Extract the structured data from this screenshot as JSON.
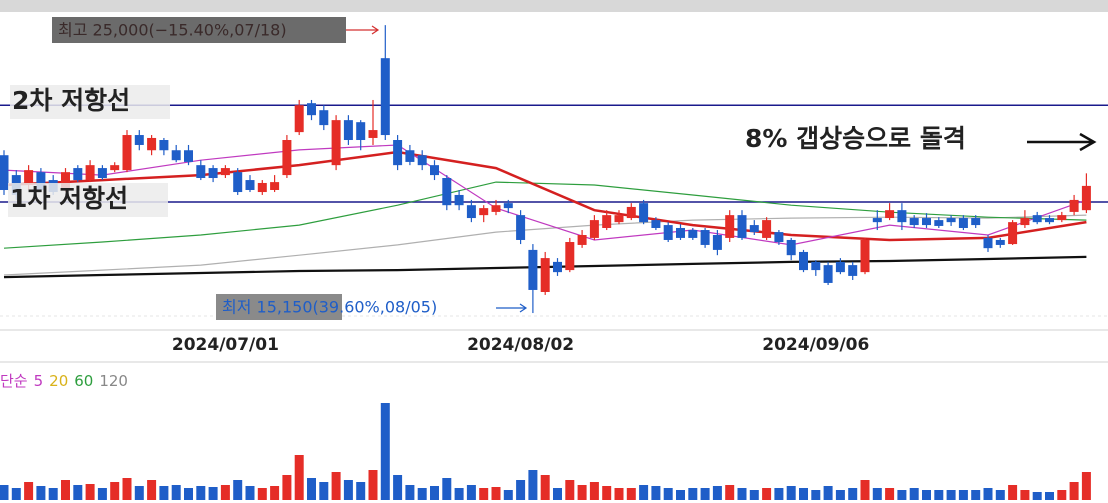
{
  "chart_data": [
    {
      "type": "candlestick",
      "categories": [
        null,
        null,
        null,
        null,
        null,
        null,
        null,
        null,
        null,
        null,
        null,
        null,
        null,
        null,
        null,
        null,
        null,
        null,
        "2024/07/01",
        null,
        null,
        null,
        null,
        null,
        null,
        null,
        null,
        null,
        null,
        null,
        null,
        null,
        null,
        null,
        null,
        null,
        null,
        null,
        null,
        null,
        null,
        null,
        "2024/08/02",
        null,
        null,
        null,
        null,
        null,
        null,
        null,
        null,
        null,
        null,
        null,
        null,
        null,
        null,
        null,
        null,
        null,
        null,
        null,
        null,
        null,
        null,
        null,
        "2024/09/06",
        null,
        null,
        null,
        null,
        null,
        null,
        null,
        null,
        null,
        null,
        null,
        null,
        null,
        null,
        null,
        null,
        null,
        null,
        null,
        null,
        null,
        null
      ],
      "open": [
        20550,
        19870,
        19530,
        19970,
        19700,
        19360,
        20110,
        19700,
        20110,
        20040,
        20040,
        21240,
        20720,
        21070,
        20720,
        20720,
        20210,
        20110,
        19870,
        19970,
        19700,
        19290,
        19360,
        19870,
        21340,
        22330,
        22090,
        20210,
        21750,
        21680,
        21140,
        23870,
        21070,
        20720,
        20550,
        20210,
        19770,
        19190,
        18840,
        18500,
        18610,
        18910,
        18500,
        17310,
        15870,
        16900,
        16620,
        17480,
        17720,
        18060,
        18260,
        18400,
        18910,
        18330,
        18160,
        18060,
        17990,
        17990,
        17820,
        17720,
        18500,
        18160,
        17720,
        17920,
        17650,
        17240,
        16900,
        16790,
        16900,
        16790,
        16550,
        18400,
        18400,
        18670,
        18400,
        18400,
        18330,
        18400,
        18400,
        18400,
        17720,
        17650,
        17510,
        18160,
        18500,
        18400,
        18330,
        18610,
        18670
      ],
      "high": [
        20720,
        20040,
        20210,
        20110,
        19870,
        20110,
        20210,
        20380,
        20210,
        20310,
        21410,
        21410,
        21240,
        21140,
        20900,
        20900,
        20380,
        20210,
        20210,
        20110,
        19870,
        19700,
        19870,
        21240,
        22440,
        22440,
        22260,
        21920,
        21920,
        21750,
        22440,
        25000,
        21240,
        20900,
        20720,
        20380,
        19870,
        19360,
        19020,
        18840,
        19020,
        19020,
        18670,
        17510,
        17240,
        17030,
        17720,
        17990,
        18500,
        18670,
        18670,
        18910,
        19020,
        18430,
        18260,
        18190,
        18060,
        18060,
        17990,
        18670,
        18670,
        18330,
        18430,
        17990,
        17720,
        17310,
        16960,
        16900,
        17030,
        16900,
        17720,
        18670,
        18910,
        18910,
        18500,
        18570,
        18430,
        18500,
        18500,
        18500,
        17820,
        17720,
        18330,
        18670,
        18610,
        18500,
        18610,
        19190,
        19930
      ],
      "low": [
        19190,
        19020,
        19360,
        19290,
        19190,
        19290,
        19630,
        19630,
        19700,
        19970,
        19970,
        20720,
        20550,
        20550,
        20310,
        20210,
        19700,
        19630,
        19770,
        19190,
        19290,
        19190,
        19290,
        19770,
        21240,
        21750,
        21410,
        20040,
        20900,
        20720,
        20900,
        21070,
        20040,
        20210,
        20040,
        19700,
        18670,
        18670,
        18260,
        18260,
        18500,
        18570,
        17510,
        15150,
        15770,
        16420,
        16550,
        17380,
        17650,
        17990,
        18190,
        18330,
        18190,
        17990,
        17580,
        17650,
        17650,
        17380,
        17130,
        17580,
        17650,
        17820,
        17650,
        17480,
        16960,
        16550,
        16420,
        16110,
        16480,
        16280,
        16480,
        17990,
        18330,
        17990,
        18060,
        18060,
        18060,
        18130,
        17990,
        18060,
        17240,
        17380,
        17480,
        18060,
        18190,
        18190,
        18260,
        18500,
        18570
      ],
      "close": [
        19360,
        19190,
        20040,
        19360,
        19290,
        19970,
        19700,
        20210,
        19770,
        20210,
        21240,
        20900,
        21140,
        20720,
        20380,
        20320,
        19770,
        19770,
        20110,
        19290,
        19360,
        19600,
        19630,
        21070,
        22260,
        21920,
        21580,
        21750,
        21070,
        21070,
        21410,
        21240,
        20210,
        20320,
        20210,
        19870,
        18840,
        18840,
        18400,
        18740,
        18840,
        18740,
        17650,
        15940,
        17030,
        16550,
        17580,
        17820,
        18330,
        18500,
        18500,
        18780,
        18260,
        18060,
        17650,
        17720,
        17720,
        17480,
        17310,
        18500,
        17720,
        17920,
        18330,
        17580,
        17130,
        16620,
        16620,
        16180,
        16550,
        16420,
        17650,
        18260,
        18670,
        18260,
        18160,
        18160,
        18130,
        18260,
        18060,
        18160,
        17370,
        17480,
        18260,
        18400,
        18260,
        18260,
        18500,
        19020,
        19500
      ],
      "colors": {
        "up": "#e52d27",
        "down": "#1f5ec8"
      },
      "ylim": [
        14570,
        25860
      ],
      "lines": [
        {
          "color": "#b0b0b0",
          "width": 1.2,
          "x": [
            0,
            8,
            16,
            24,
            32,
            40,
            48,
            56,
            64,
            72,
            80,
            88
          ],
          "values": [
            16450,
            16620,
            16790,
            17130,
            17480,
            17920,
            18160,
            18330,
            18400,
            18430,
            18400,
            18500
          ]
        },
        {
          "color": "#2e9e3e",
          "width": 1.2,
          "x": [
            0,
            8,
            16,
            24,
            32,
            40,
            48,
            56,
            64,
            72,
            80,
            88
          ],
          "values": [
            17370,
            17580,
            17820,
            18160,
            18840,
            19630,
            19530,
            19190,
            18840,
            18600,
            18430,
            18330
          ]
        },
        {
          "color": "#111111",
          "width": 2.2,
          "x": [
            0,
            8,
            16,
            24,
            32,
            40,
            48,
            56,
            64,
            72,
            80,
            88
          ],
          "values": [
            16380,
            16450,
            16520,
            16590,
            16620,
            16690,
            16760,
            16830,
            16900,
            16930,
            17000,
            17070
          ]
        },
        {
          "color": "#d42020",
          "width": 2.5,
          "x": [
            0,
            8,
            16,
            24,
            32,
            40,
            48,
            56,
            64,
            72,
            80,
            88
          ],
          "values": [
            19530,
            19700,
            19870,
            20210,
            20660,
            20110,
            18670,
            18160,
            17820,
            17650,
            17720,
            18260
          ]
        },
        {
          "color": "#c03ac0",
          "width": 1.2,
          "x": [
            0,
            8,
            16,
            24,
            32,
            40,
            48,
            56,
            64,
            72,
            80,
            88
          ],
          "values": [
            20040,
            19870,
            20380,
            20730,
            20900,
            18740,
            17650,
            17990,
            17480,
            18160,
            17820,
            19020
          ]
        }
      ],
      "hlines": [
        {
          "label": "2차 저항선",
          "value": 22260,
          "color": "#1a1a8c"
        },
        {
          "label": "1차 저항선",
          "value": 18950,
          "color": "#1a1a8c"
        }
      ],
      "annotations": [
        "최고 25,000(−15.40%,07/18)",
        "최저 15,150(39.60%,08/05)",
        "8% 갭상승으로 돌격"
      ]
    },
    {
      "type": "bar",
      "values": [
        15,
        12,
        18,
        14,
        12,
        20,
        15,
        16,
        12,
        18,
        22,
        14,
        20,
        14,
        15,
        12,
        14,
        13,
        15,
        20,
        14,
        12,
        14,
        25,
        45,
        22,
        18,
        28,
        20,
        18,
        30,
        97,
        25,
        15,
        12,
        14,
        22,
        12,
        15,
        12,
        13,
        10,
        20,
        30,
        25,
        12,
        20,
        15,
        18,
        14,
        12,
        12,
        15,
        14,
        12,
        10,
        12,
        12,
        14,
        15,
        12,
        10,
        12,
        12,
        14,
        12,
        10,
        14,
        10,
        12,
        20,
        12,
        12,
        10,
        12,
        10,
        10,
        10,
        10,
        10,
        12,
        10,
        15,
        10,
        8,
        8,
        10,
        18,
        28
      ],
      "ylim": [
        0,
        140
      ],
      "legend": {
        "title": "단순",
        "title_color": "#c03ac0",
        "items": [
          {
            "name": "5",
            "color": "#c03ac0"
          },
          {
            "name": "20",
            "color": "#d9b21a"
          },
          {
            "name": "60",
            "color": "#2e9e3e"
          },
          {
            "name": "120",
            "color": "#888888"
          }
        ]
      }
    }
  ]
}
